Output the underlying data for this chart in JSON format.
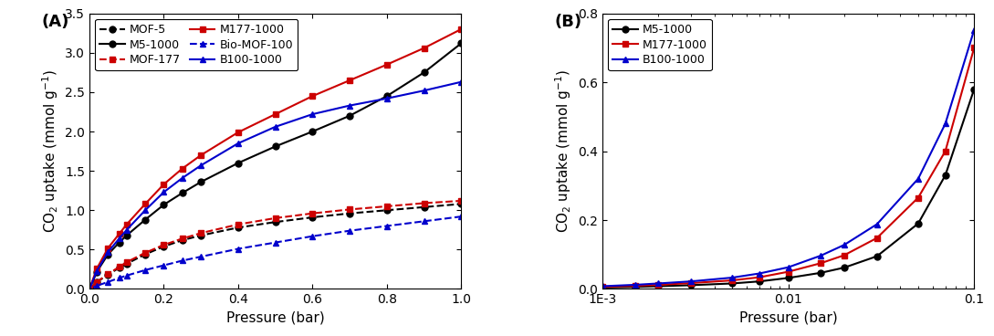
{
  "panel_A": {
    "label": "(A)",
    "xlabel": "Pressure (bar)",
    "ylabel": "CO$_2$ uptake (mmol g$^{-1}$)",
    "xlim": [
      0.0,
      1.0
    ],
    "ylim": [
      0.0,
      3.5
    ],
    "yticks": [
      0.0,
      0.5,
      1.0,
      1.5,
      2.0,
      2.5,
      3.0,
      3.5
    ],
    "xticks": [
      0.0,
      0.2,
      0.4,
      0.6,
      0.8,
      1.0
    ],
    "series": [
      {
        "label": "MOF-5",
        "color": "#000000",
        "linestyle": "--",
        "marker": "o",
        "x": [
          0.0,
          0.02,
          0.05,
          0.08,
          0.1,
          0.15,
          0.2,
          0.25,
          0.3,
          0.4,
          0.5,
          0.6,
          0.7,
          0.8,
          0.9,
          1.0
        ],
        "y": [
          0.0,
          0.09,
          0.18,
          0.27,
          0.32,
          0.44,
          0.54,
          0.62,
          0.68,
          0.78,
          0.85,
          0.91,
          0.96,
          1.0,
          1.04,
          1.08
        ]
      },
      {
        "label": "MOF-177",
        "color": "#cc0000",
        "linestyle": "--",
        "marker": "s",
        "x": [
          0.0,
          0.02,
          0.05,
          0.08,
          0.1,
          0.15,
          0.2,
          0.25,
          0.3,
          0.4,
          0.5,
          0.6,
          0.7,
          0.8,
          0.9,
          1.0
        ],
        "y": [
          0.0,
          0.09,
          0.19,
          0.28,
          0.34,
          0.46,
          0.56,
          0.64,
          0.71,
          0.82,
          0.9,
          0.96,
          1.01,
          1.05,
          1.09,
          1.12
        ]
      },
      {
        "label": "Bio-MOF-100",
        "color": "#0000cc",
        "linestyle": "--",
        "marker": "^",
        "x": [
          0.0,
          0.02,
          0.05,
          0.08,
          0.1,
          0.15,
          0.2,
          0.25,
          0.3,
          0.4,
          0.5,
          0.6,
          0.7,
          0.8,
          0.9,
          1.0
        ],
        "y": [
          0.0,
          0.04,
          0.09,
          0.14,
          0.17,
          0.24,
          0.3,
          0.36,
          0.41,
          0.51,
          0.59,
          0.67,
          0.74,
          0.8,
          0.86,
          0.92
        ]
      },
      {
        "label": "M5-1000",
        "color": "#000000",
        "linestyle": "-",
        "marker": "o",
        "x": [
          0.0,
          0.02,
          0.05,
          0.08,
          0.1,
          0.15,
          0.2,
          0.25,
          0.3,
          0.4,
          0.5,
          0.6,
          0.7,
          0.8,
          0.9,
          1.0
        ],
        "y": [
          0.0,
          0.22,
          0.44,
          0.59,
          0.68,
          0.88,
          1.07,
          1.22,
          1.36,
          1.6,
          1.81,
          2.0,
          2.2,
          2.45,
          2.75,
          3.12
        ]
      },
      {
        "label": "M177-1000",
        "color": "#cc0000",
        "linestyle": "-",
        "marker": "s",
        "x": [
          0.0,
          0.02,
          0.05,
          0.08,
          0.1,
          0.15,
          0.2,
          0.25,
          0.3,
          0.4,
          0.5,
          0.6,
          0.7,
          0.8,
          0.9,
          1.0
        ],
        "y": [
          0.0,
          0.26,
          0.52,
          0.7,
          0.82,
          1.08,
          1.33,
          1.53,
          1.7,
          1.99,
          2.22,
          2.45,
          2.65,
          2.85,
          3.06,
          3.3
        ]
      },
      {
        "label": "B100-1000",
        "color": "#0000cc",
        "linestyle": "-",
        "marker": "^",
        "x": [
          0.0,
          0.02,
          0.05,
          0.08,
          0.1,
          0.15,
          0.2,
          0.25,
          0.3,
          0.4,
          0.5,
          0.6,
          0.7,
          0.8,
          0.9,
          1.0
        ],
        "y": [
          0.0,
          0.23,
          0.47,
          0.64,
          0.75,
          1.0,
          1.23,
          1.41,
          1.57,
          1.85,
          2.06,
          2.22,
          2.33,
          2.42,
          2.52,
          2.63
        ]
      }
    ]
  },
  "panel_B": {
    "label": "(B)",
    "xlabel": "Pressure (bar)",
    "ylabel": "CO$_2$ uptake (mmol g$^{-1}$)",
    "xlim": [
      0.001,
      0.1
    ],
    "ylim": [
      0.0,
      0.8
    ],
    "yticks": [
      0.0,
      0.2,
      0.4,
      0.6,
      0.8
    ],
    "series": [
      {
        "label": "M5-1000",
        "color": "#000000",
        "linestyle": "-",
        "marker": "o",
        "x": [
          0.001,
          0.0015,
          0.002,
          0.003,
          0.005,
          0.007,
          0.01,
          0.015,
          0.02,
          0.03,
          0.05,
          0.07,
          0.1
        ],
        "y": [
          0.004,
          0.006,
          0.008,
          0.011,
          0.016,
          0.022,
          0.032,
          0.047,
          0.062,
          0.095,
          0.19,
          0.33,
          0.58
        ]
      },
      {
        "label": "M177-1000",
        "color": "#cc0000",
        "linestyle": "-",
        "marker": "s",
        "x": [
          0.001,
          0.0015,
          0.002,
          0.003,
          0.005,
          0.007,
          0.01,
          0.015,
          0.02,
          0.03,
          0.05,
          0.07,
          0.1
        ],
        "y": [
          0.006,
          0.009,
          0.012,
          0.017,
          0.025,
          0.034,
          0.05,
          0.075,
          0.098,
          0.148,
          0.265,
          0.4,
          0.7
        ]
      },
      {
        "label": "B100-1000",
        "color": "#0000cc",
        "linestyle": "-",
        "marker": "^",
        "x": [
          0.001,
          0.0015,
          0.002,
          0.003,
          0.005,
          0.007,
          0.01,
          0.015,
          0.02,
          0.03,
          0.05,
          0.07,
          0.1
        ],
        "y": [
          0.008,
          0.012,
          0.016,
          0.022,
          0.033,
          0.045,
          0.063,
          0.097,
          0.128,
          0.188,
          0.32,
          0.48,
          0.752
        ]
      }
    ]
  },
  "figure_bgcolor": "#ffffff",
  "fontsize_label": 11,
  "fontsize_tick": 10,
  "fontsize_legend": 9,
  "fontsize_panel_label": 13,
  "linewidth": 1.5,
  "markersize": 5
}
